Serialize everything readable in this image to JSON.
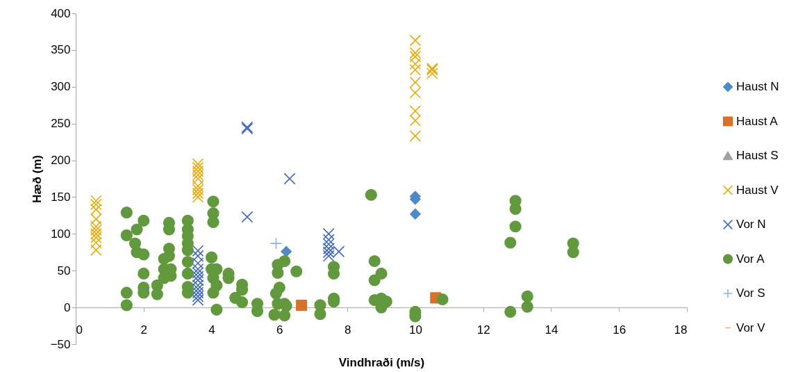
{
  "chart_data": {
    "type": "scatter",
    "xlabel": "Vindhraði (m/s)",
    "ylabel": "Hæð (m)",
    "xlim": [
      0,
      18
    ],
    "xticks": [
      0,
      2,
      4,
      6,
      8,
      10,
      12,
      14,
      16,
      18
    ],
    "ylim": [
      -50,
      400
    ],
    "yticks": [
      -50,
      0,
      50,
      100,
      150,
      200,
      250,
      300,
      350,
      400
    ],
    "grid": false,
    "legend": "right",
    "series": [
      {
        "name": "Haust N",
        "color": "#4e8ac6",
        "marker": "diamond",
        "x": [
          6.2,
          10.0,
          10.0,
          10.0
        ],
        "values": [
          76,
          127,
          147,
          151
        ]
      },
      {
        "name": "Haust A",
        "color": "#d9712b",
        "marker": "square",
        "x": [
          6.65,
          10.6
        ],
        "values": [
          3,
          13
        ]
      },
      {
        "name": "Haust S",
        "color": "#a0a0a0",
        "marker": "triangle"
      },
      {
        "name": "Haust V",
        "color": "#e6ac0a",
        "marker": "cross",
        "x": [
          0.6,
          0.6,
          0.6,
          0.6,
          0.6,
          0.6,
          0.6,
          0.6,
          0.6,
          0.6,
          3.6,
          3.6,
          3.6,
          3.6,
          3.6,
          3.6,
          3.6,
          3.6,
          3.6,
          10.0,
          10.0,
          10.0,
          10.0,
          10.0,
          10.0,
          10.0,
          10.0,
          10.0,
          10.0,
          10.5,
          10.5,
          10.5
        ],
        "values": [
          78,
          88,
          95,
          100,
          105,
          110,
          120,
          133,
          140,
          145,
          150,
          155,
          160,
          165,
          175,
          180,
          185,
          190,
          195,
          233,
          254,
          267,
          292,
          306,
          323,
          331,
          341,
          346,
          363,
          318,
          323,
          325
        ]
      },
      {
        "name": "Vor N",
        "color": "#4169b8",
        "marker": "cross",
        "x": [
          5.05,
          5.05,
          6.3,
          5.05,
          7.45,
          7.45,
          7.45,
          7.45,
          7.45,
          7.45,
          7.75,
          3.6,
          3.6,
          3.6,
          3.6,
          3.6,
          3.6,
          3.6,
          3.6,
          3.6,
          3.6,
          3.6,
          3.6
        ],
        "values": [
          243,
          245,
          175,
          123,
          100,
          92,
          86,
          80,
          75,
          70,
          76,
          77,
          70,
          60,
          52,
          47,
          42,
          37,
          30,
          25,
          20,
          15,
          10
        ]
      },
      {
        "name": "Vor A",
        "color": "#62993e",
        "marker": "circle",
        "x": [
          1.5,
          1.5,
          1.5,
          1.5,
          1.8,
          1.75,
          1.8,
          2.0,
          2.0,
          2.0,
          2.0,
          2.0,
          2.4,
          2.4,
          2.75,
          2.75,
          2.75,
          2.75,
          2.6,
          2.6,
          2.8,
          2.8,
          2.6,
          3.3,
          3.3,
          3.3,
          3.3,
          3.3,
          3.3,
          3.3,
          3.3,
          3.3,
          4.05,
          4.05,
          4.05,
          4.0,
          4.0,
          4.15,
          4.05,
          4.15,
          4.05,
          4.15,
          4.5,
          4.5,
          4.9,
          4.9,
          4.7,
          4.9,
          5.35,
          5.35,
          5.95,
          5.95,
          6.15,
          6.5,
          6.0,
          5.9,
          5.95,
          6.15,
          6.2,
          5.85,
          6.15,
          7.2,
          7.2,
          7.6,
          7.6,
          7.6,
          7.6,
          8.7,
          8.8,
          9.0,
          8.8,
          8.8,
          9.0,
          9.15,
          9.0,
          10.0,
          10.0,
          10.8,
          12.95,
          12.95,
          12.95,
          12.8,
          14.65,
          14.65,
          13.3,
          13.3,
          12.8
        ],
        "values": [
          129,
          98,
          20,
          3,
          106,
          87,
          75,
          118,
          72,
          46,
          27,
          20,
          30,
          18,
          115,
          106,
          80,
          70,
          66,
          52,
          52,
          43,
          40,
          118,
          106,
          97,
          87,
          78,
          62,
          46,
          28,
          20,
          144,
          128,
          116,
          68,
          52,
          52,
          40,
          30,
          20,
          -3,
          46,
          40,
          31,
          24,
          13,
          7,
          5,
          -5,
          47,
          58,
          63,
          49,
          27,
          19,
          5,
          5,
          2,
          -10,
          -11,
          3,
          -9,
          55,
          46,
          12,
          8,
          153,
          63,
          46,
          37,
          10,
          12,
          8,
          0,
          -6,
          -12,
          11,
          145,
          134,
          110,
          88,
          87,
          75,
          15,
          1,
          -6
        ]
      },
      {
        "name": "Vor S",
        "color": "#8fb3e0",
        "marker": "plus",
        "x": [
          5.9
        ],
        "values": [
          87
        ]
      },
      {
        "name": "Vor V",
        "color": "#f4a98a",
        "marker": "dash"
      }
    ]
  }
}
